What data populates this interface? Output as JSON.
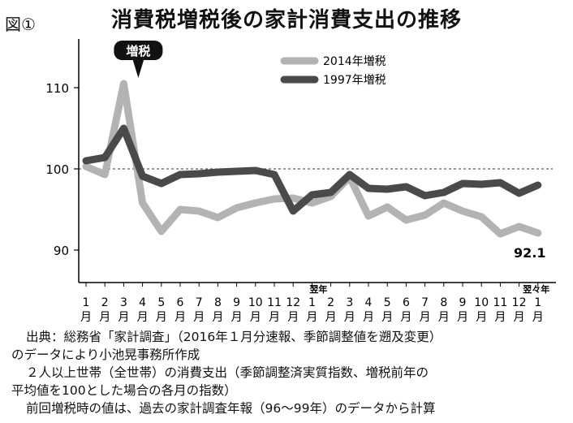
{
  "figure_label": "図①",
  "chart_data": {
    "type": "line",
    "title": "消費税増税後の家計消費支出の推移",
    "ylim": [
      86,
      116
    ],
    "yticks": [
      90,
      100,
      110
    ],
    "reference_line": 100,
    "grid": false,
    "legend_position": "top-right",
    "categories": [
      "1\n月",
      "2\n月",
      "3\n月",
      "4\n月",
      "5\n月",
      "6\n月",
      "7\n月",
      "8\n月",
      "9\n月",
      "10\n月",
      "11\n月",
      "12\n月",
      "1\n月",
      "2\n月",
      "3\n月",
      "4\n月",
      "5\n月",
      "6\n月",
      "7\n月",
      "8\n月",
      "9\n月",
      "10\n月",
      "11\n月",
      "12\n月",
      "1\n月"
    ],
    "year_markers": [
      {
        "index": 12,
        "label": "翌年"
      },
      {
        "index": 24,
        "label": "翌々年"
      }
    ],
    "series": [
      {
        "name": "2014年増税",
        "color": "#b3b3b3",
        "values": [
          100.3,
          99.3,
          110.5,
          95.8,
          92.3,
          95.0,
          94.8,
          94.0,
          95.2,
          95.8,
          96.3,
          96.4,
          95.8,
          96.6,
          99.0,
          94.2,
          95.3,
          93.7,
          94.3,
          95.8,
          94.8,
          94.1,
          92.0,
          92.9,
          92.1
        ]
      },
      {
        "name": "1997年増税",
        "color": "#4a4a4a",
        "values": [
          101.0,
          101.4,
          105.0,
          99.1,
          98.2,
          99.3,
          99.4,
          99.6,
          99.7,
          99.8,
          99.3,
          94.8,
          96.8,
          97.1,
          99.3,
          97.6,
          97.5,
          97.8,
          96.7,
          97.1,
          98.2,
          98.1,
          98.3,
          97.0,
          98.0
        ]
      }
    ],
    "annotations": [
      {
        "text": "増税",
        "index": 2
      },
      {
        "text": "92.1",
        "series": 0,
        "index": 24
      }
    ]
  },
  "notes": [
    "出典：総務省「家計調査」（2016年１月分速報、季節調整値を遡及変更）",
    "のデータにより小池晃事務所作成",
    "２人以上世帯（全世帯）の消費支出（季節調整済実質指数、増税前年の",
    "平均値を100とした場合の各月の指数）",
    "前回増税時の値は、過去の家計調査年報（96〜99年）のデータから計算"
  ]
}
